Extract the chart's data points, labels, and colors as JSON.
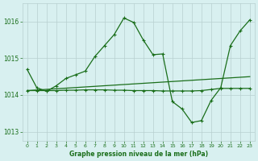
{
  "line1_x": [
    0,
    1,
    2,
    3,
    4,
    5,
    6,
    7,
    8,
    9,
    10,
    11,
    12,
    13,
    14,
    15,
    16,
    17,
    18,
    19,
    20,
    21,
    22,
    23
  ],
  "line1_y": [
    1014.7,
    1014.2,
    1014.1,
    1014.25,
    1014.45,
    1014.55,
    1014.65,
    1015.05,
    1015.35,
    1015.65,
    1016.1,
    1015.98,
    1015.5,
    1015.1,
    1015.12,
    1013.82,
    1013.62,
    1013.25,
    1013.3,
    1013.85,
    1014.2,
    1015.35,
    1015.75,
    1016.05
  ],
  "line2_x": [
    0,
    23
  ],
  "line2_y": [
    1014.12,
    1014.5
  ],
  "line3_x": [
    0,
    1,
    2,
    3,
    4,
    5,
    6,
    7,
    8,
    9,
    10,
    11,
    12,
    13,
    14,
    15,
    16,
    17,
    18,
    19,
    20,
    21,
    22,
    23
  ],
  "line3_y": [
    1014.12,
    1014.12,
    1014.12,
    1014.12,
    1014.13,
    1014.13,
    1014.14,
    1014.14,
    1014.14,
    1014.13,
    1014.13,
    1014.12,
    1014.12,
    1014.12,
    1014.11,
    1014.11,
    1014.11,
    1014.11,
    1014.12,
    1014.15,
    1014.18,
    1014.18,
    1014.18,
    1014.18
  ],
  "line_color": "#1a6e1a",
  "bg_color": "#d8f0f0",
  "grid_color": "#b8d0d0",
  "xlabel": "Graphe pression niveau de la mer (hPa)",
  "ylim": [
    1012.75,
    1016.5
  ],
  "xlim": [
    -0.5,
    23.5
  ],
  "yticks": [
    1013,
    1014,
    1015,
    1016
  ],
  "xticks": [
    0,
    1,
    2,
    3,
    4,
    5,
    6,
    7,
    8,
    9,
    10,
    11,
    12,
    13,
    14,
    15,
    16,
    17,
    18,
    19,
    20,
    21,
    22,
    23
  ]
}
